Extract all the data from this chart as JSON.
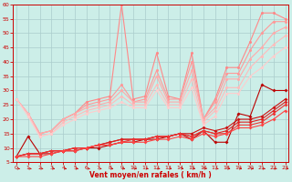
{
  "background_color": "#cceee8",
  "grid_color": "#aacccc",
  "xlabel": "Vent moyen/en rafales ( km/h )",
  "xlim": [
    0,
    23
  ],
  "ylim": [
    5,
    60
  ],
  "yticks": [
    5,
    10,
    15,
    20,
    25,
    30,
    35,
    40,
    45,
    50,
    55,
    60
  ],
  "xticks": [
    0,
    1,
    2,
    3,
    4,
    5,
    6,
    7,
    8,
    9,
    10,
    11,
    12,
    13,
    14,
    15,
    16,
    17,
    18,
    19,
    20,
    21,
    22,
    23
  ],
  "series": [
    {
      "x": [
        0,
        1,
        2,
        3,
        4,
        5,
        6,
        7,
        8,
        9,
        10,
        11,
        12,
        13,
        14,
        15,
        16,
        17,
        18,
        19,
        20,
        21,
        22,
        23
      ],
      "y": [
        7,
        14,
        8,
        8,
        9,
        9,
        10,
        10,
        11,
        12,
        12,
        13,
        13,
        14,
        15,
        13,
        16,
        12,
        12,
        22,
        21,
        32,
        30,
        30
      ],
      "color": "#bb0000",
      "lw": 0.8,
      "marker": "D",
      "ms": 2.0
    },
    {
      "x": [
        0,
        1,
        2,
        3,
        4,
        5,
        6,
        7,
        8,
        9,
        10,
        11,
        12,
        13,
        14,
        15,
        16,
        17,
        18,
        19,
        20,
        21,
        22,
        23
      ],
      "y": [
        7,
        8,
        8,
        9,
        9,
        10,
        10,
        11,
        12,
        13,
        13,
        13,
        14,
        14,
        15,
        15,
        17,
        16,
        17,
        20,
        20,
        21,
        24,
        27
      ],
      "color": "#cc1111",
      "lw": 0.8,
      "marker": "D",
      "ms": 2.0
    },
    {
      "x": [
        0,
        1,
        2,
        3,
        4,
        5,
        6,
        7,
        8,
        9,
        10,
        11,
        12,
        13,
        14,
        15,
        16,
        17,
        18,
        19,
        20,
        21,
        22,
        23
      ],
      "y": [
        7,
        8,
        8,
        9,
        9,
        10,
        10,
        11,
        12,
        13,
        13,
        13,
        14,
        14,
        15,
        14,
        16,
        15,
        16,
        19,
        19,
        20,
        23,
        26
      ],
      "color": "#dd2222",
      "lw": 0.8,
      "marker": "D",
      "ms": 2.0
    },
    {
      "x": [
        0,
        1,
        2,
        3,
        4,
        5,
        6,
        7,
        8,
        9,
        10,
        11,
        12,
        13,
        14,
        15,
        16,
        17,
        18,
        19,
        20,
        21,
        22,
        23
      ],
      "y": [
        7,
        8,
        8,
        9,
        9,
        10,
        10,
        11,
        11,
        12,
        13,
        13,
        14,
        14,
        15,
        14,
        16,
        15,
        15,
        18,
        18,
        19,
        22,
        25
      ],
      "color": "#ee3333",
      "lw": 0.8,
      "marker": "D",
      "ms": 2.0
    },
    {
      "x": [
        0,
        1,
        2,
        3,
        4,
        5,
        6,
        7,
        8,
        9,
        10,
        11,
        12,
        13,
        14,
        15,
        16,
        17,
        18,
        19,
        20,
        21,
        22,
        23
      ],
      "y": [
        7,
        7,
        7,
        8,
        9,
        9,
        10,
        11,
        11,
        12,
        12,
        12,
        13,
        13,
        14,
        13,
        15,
        14,
        15,
        17,
        17,
        18,
        20,
        23
      ],
      "color": "#ff4444",
      "lw": 0.8,
      "marker": "D",
      "ms": 2.0
    },
    {
      "x": [
        0,
        1,
        2,
        3,
        4,
        5,
        6,
        7,
        8,
        9,
        10,
        11,
        12,
        13,
        14,
        15,
        16,
        17,
        18,
        19,
        20,
        21,
        22,
        23
      ],
      "y": [
        27,
        22,
        15,
        16,
        20,
        22,
        26,
        27,
        28,
        60,
        27,
        28,
        43,
        28,
        27,
        43,
        20,
        27,
        38,
        38,
        47,
        57,
        57,
        55
      ],
      "color": "#ff8888",
      "lw": 0.8,
      "marker": "o",
      "ms": 2.2
    },
    {
      "x": [
        0,
        1,
        2,
        3,
        4,
        5,
        6,
        7,
        8,
        9,
        10,
        11,
        12,
        13,
        14,
        15,
        16,
        17,
        18,
        19,
        20,
        21,
        22,
        23
      ],
      "y": [
        27,
        22,
        15,
        16,
        20,
        22,
        25,
        26,
        27,
        32,
        26,
        27,
        37,
        27,
        27,
        40,
        20,
        26,
        36,
        36,
        44,
        50,
        54,
        54
      ],
      "color": "#ff9999",
      "lw": 0.8,
      "marker": "o",
      "ms": 2.2
    },
    {
      "x": [
        0,
        1,
        2,
        3,
        4,
        5,
        6,
        7,
        8,
        9,
        10,
        11,
        12,
        13,
        14,
        15,
        16,
        17,
        18,
        19,
        20,
        21,
        22,
        23
      ],
      "y": [
        27,
        22,
        15,
        16,
        20,
        22,
        24,
        25,
        26,
        30,
        26,
        26,
        35,
        26,
        26,
        37,
        20,
        24,
        34,
        34,
        41,
        45,
        50,
        52
      ],
      "color": "#ffaaaa",
      "lw": 0.8,
      "marker": "o",
      "ms": 2.2
    },
    {
      "x": [
        0,
        1,
        2,
        3,
        4,
        5,
        6,
        7,
        8,
        9,
        10,
        11,
        12,
        13,
        14,
        15,
        16,
        17,
        18,
        19,
        20,
        21,
        22,
        23
      ],
      "y": [
        27,
        22,
        14,
        15,
        19,
        21,
        23,
        24,
        25,
        28,
        25,
        25,
        32,
        25,
        25,
        34,
        19,
        23,
        31,
        31,
        38,
        42,
        46,
        49
      ],
      "color": "#ffbbbb",
      "lw": 0.8,
      "marker": "o",
      "ms": 2.2
    },
    {
      "x": [
        0,
        1,
        2,
        3,
        4,
        5,
        6,
        7,
        8,
        9,
        10,
        11,
        12,
        13,
        14,
        15,
        16,
        17,
        18,
        19,
        20,
        21,
        22,
        23
      ],
      "y": [
        27,
        21,
        14,
        15,
        18,
        20,
        22,
        23,
        24,
        26,
        24,
        24,
        30,
        24,
        24,
        31,
        18,
        21,
        29,
        29,
        35,
        38,
        42,
        45
      ],
      "color": "#ffcccc",
      "lw": 0.8,
      "marker": "o",
      "ms": 2.2
    }
  ],
  "tick_label_color": "#cc0000",
  "axis_color": "#cc0000",
  "arrow_color": "#cc0000"
}
